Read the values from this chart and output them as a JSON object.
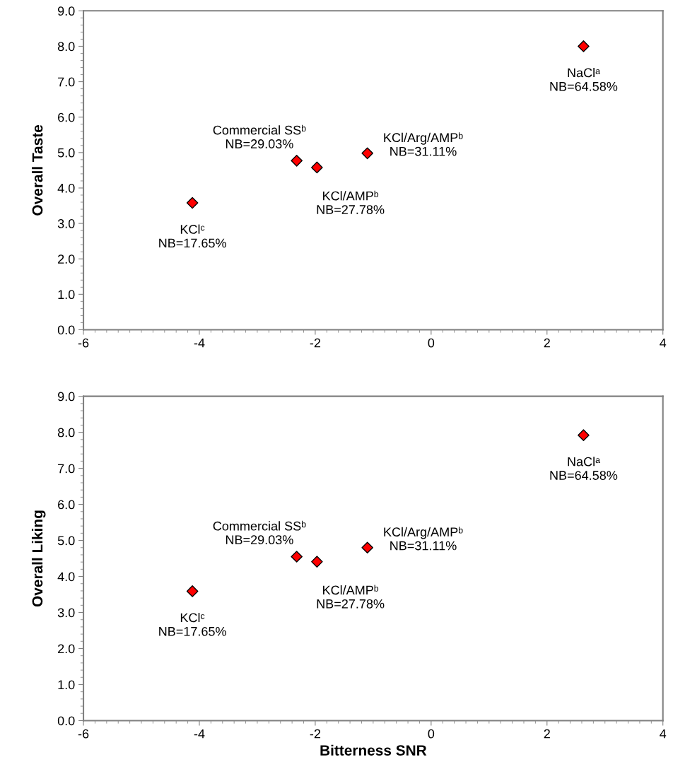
{
  "chart_data": [
    {
      "type": "scatter",
      "ylabel": "Overall Taste",
      "marker": "diamond",
      "grid": false,
      "x": [
        -4.12,
        -2.32,
        -1.97,
        -1.1,
        2.63
      ],
      "series": [
        {
          "color": "#ff0000",
          "values": [
            3.58,
            4.77,
            4.58,
            4.98,
            8.0
          ]
        }
      ],
      "annotations": [
        {
          "text": "KClᶜ\nNB=17.65%",
          "x": -4.12,
          "y": 3.58
        },
        {
          "text": "Commercial SSᵇ\nNB=29.03%",
          "x": -2.32,
          "y": 4.77
        },
        {
          "text": "KCl/AMPᵇ\nNB=27.78%",
          "x": -1.97,
          "y": 4.58
        },
        {
          "text": "KCl/Arg/AMPᵇ\nNB=31.11%",
          "x": -1.1,
          "y": 4.98
        },
        {
          "text": "NaClᵃ\nNB=64.58%",
          "x": 2.63,
          "y": 8.0
        }
      ],
      "xlim": [
        -6,
        4
      ],
      "xticks": [
        -6,
        -4,
        -2,
        0,
        2,
        4
      ],
      "ylim": [
        0,
        9
      ],
      "yticks": [
        {
          "value": 0,
          "label": "0.0"
        },
        {
          "value": 1,
          "label": "1.0"
        },
        {
          "value": 2,
          "label": "2.0"
        },
        {
          "value": 3,
          "label": "3.0"
        },
        {
          "value": 4,
          "label": "4.0"
        },
        {
          "value": 5,
          "label": "5.0"
        },
        {
          "value": 6,
          "label": "6.0"
        },
        {
          "value": 7,
          "label": "7.0"
        },
        {
          "value": 8,
          "label": "8.0"
        },
        {
          "value": 9,
          "label": "9.0"
        }
      ]
    },
    {
      "type": "scatter",
      "xlabel": "Bitterness SNR",
      "ylabel": "Overall Liking",
      "marker": "diamond",
      "grid": false,
      "x": [
        -4.12,
        -2.32,
        -1.97,
        -1.1,
        2.63
      ],
      "series": [
        {
          "color": "#ff0000",
          "values": [
            3.59,
            4.55,
            4.41,
            4.8,
            7.92
          ]
        }
      ],
      "annotations": [
        {
          "text": "KClᶜ\nNB=17.65%",
          "x": -4.12,
          "y": 3.59
        },
        {
          "text": "Commercial SSᵇ\nNB=29.03%",
          "x": -2.32,
          "y": 4.55
        },
        {
          "text": "KCl/AMPᵇ\nNB=27.78%",
          "x": -1.97,
          "y": 4.41
        },
        {
          "text": "KCl/Arg/AMPᵇ\nNB=31.11%",
          "x": -1.1,
          "y": 4.8
        },
        {
          "text": "NaClᵃ\nNB=64.58%",
          "x": 2.63,
          "y": 7.92
        }
      ],
      "xlim": [
        -6,
        4
      ],
      "xticks": [
        -6,
        -4,
        -2,
        0,
        2,
        4
      ],
      "ylim": [
        0,
        9
      ],
      "yticks": [
        {
          "value": 0,
          "label": "0.0"
        },
        {
          "value": 1,
          "label": "1.0"
        },
        {
          "value": 2,
          "label": "2.0"
        },
        {
          "value": 3,
          "label": "3.0"
        },
        {
          "value": 4,
          "label": "4.0"
        },
        {
          "value": 5,
          "label": "5.0"
        },
        {
          "value": 6,
          "label": "6.0"
        },
        {
          "value": 7,
          "label": "7.0"
        },
        {
          "value": 8,
          "label": "8.0"
        },
        {
          "value": 9,
          "label": "9.0"
        }
      ]
    }
  ]
}
